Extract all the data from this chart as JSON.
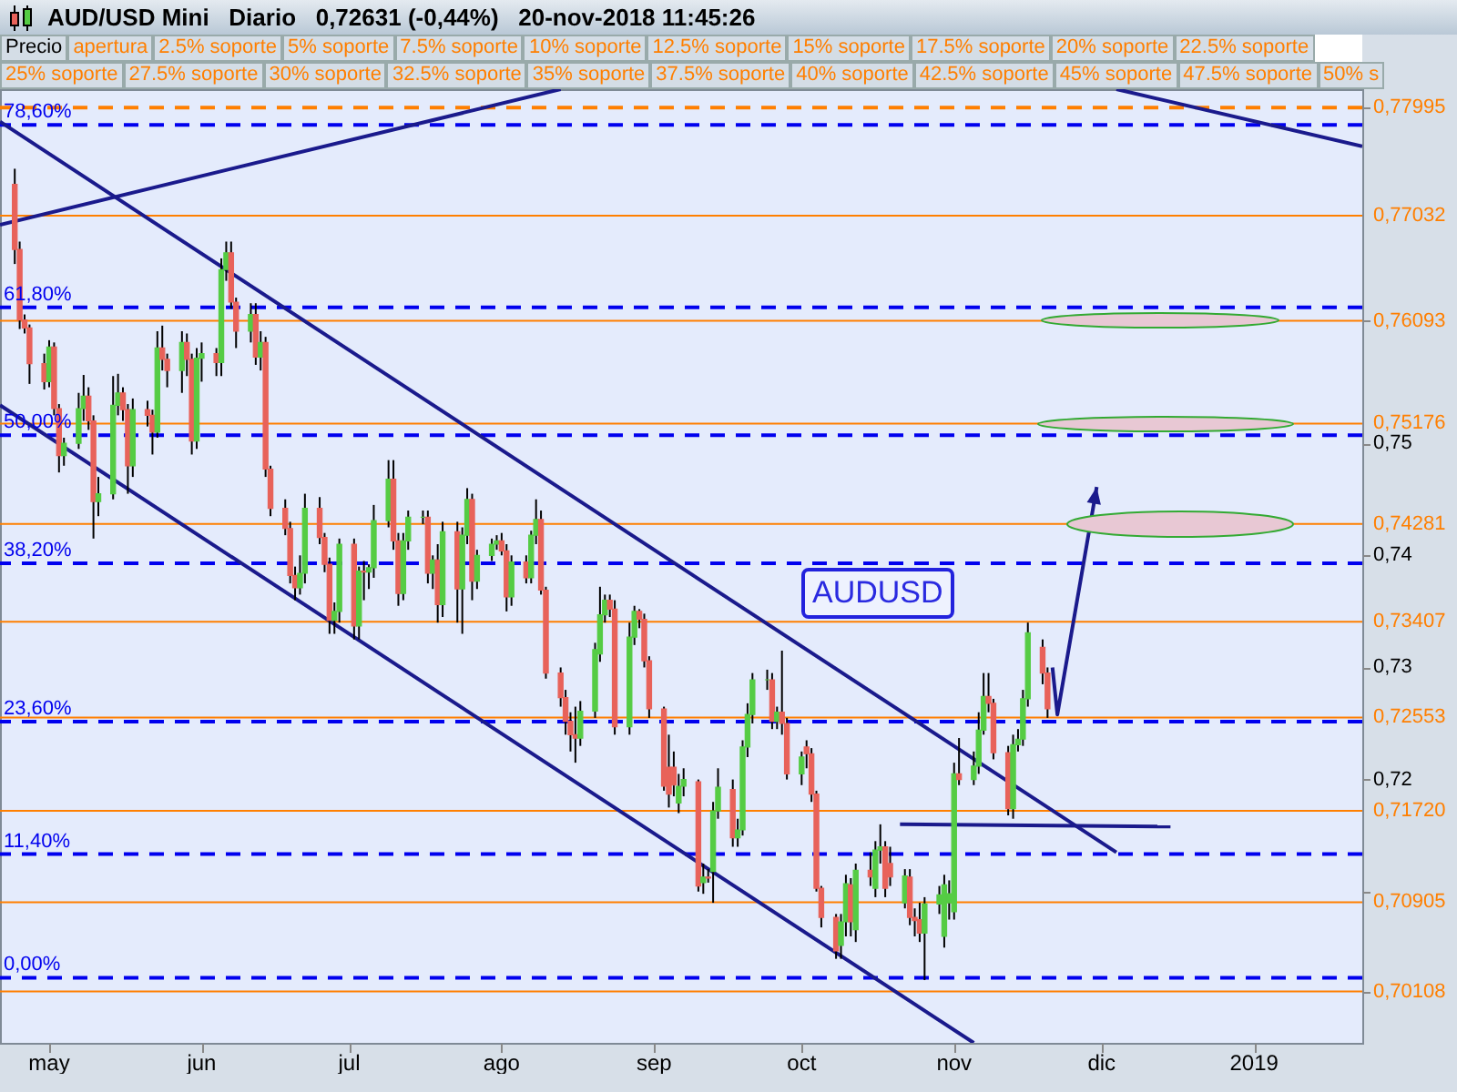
{
  "chart_data": {
    "type": "candlestick",
    "title": "AUD/USD Mini   Diario   0,72631 (-0,44%)   20-nov-2018 11:45:26",
    "annotations": [
      "AUDUSD",
      "Precio",
      "apertura",
      "2.5% soporte",
      "5% soporte",
      "7.5% soporte",
      "10% soporte",
      "12.5% soporte",
      "15% soporte",
      "17.5% soporte",
      "20% soporte",
      "22.5% soporte",
      "25% soporte",
      "27.5% soporte",
      "30% soporte",
      "32.5% soporte",
      "35% soporte",
      "37.5% soporte",
      "40% soporte",
      "42.5% soporte",
      "45% soporte",
      "47.5% soporte",
      "50% s"
    ],
    "x": [
      "2018-04-24",
      "2018-04-25",
      "2018-04-26",
      "2018-04-27",
      "2018-04-30",
      "2018-05-01",
      "2018-05-02",
      "2018-05-03",
      "2018-05-04",
      "2018-05-07",
      "2018-05-08",
      "2018-05-09",
      "2018-05-10",
      "2018-05-11",
      "2018-05-14",
      "2018-05-15",
      "2018-05-16",
      "2018-05-17",
      "2018-05-18",
      "2018-05-21",
      "2018-05-22",
      "2018-05-23",
      "2018-05-24",
      "2018-05-25",
      "2018-05-28",
      "2018-05-29",
      "2018-05-30",
      "2018-05-31",
      "2018-06-01",
      "2018-06-04",
      "2018-06-05",
      "2018-06-06",
      "2018-06-07",
      "2018-06-08",
      "2018-06-11",
      "2018-06-12",
      "2018-06-13",
      "2018-06-14",
      "2018-06-15",
      "2018-06-18",
      "2018-06-19",
      "2018-06-20",
      "2018-06-21",
      "2018-06-22",
      "2018-06-25",
      "2018-06-26",
      "2018-06-27",
      "2018-06-28",
      "2018-06-29",
      "2018-07-02",
      "2018-07-03",
      "2018-07-04",
      "2018-07-05",
      "2018-07-06",
      "2018-07-09",
      "2018-07-10",
      "2018-07-11",
      "2018-07-12",
      "2018-07-13",
      "2018-07-16",
      "2018-07-17",
      "2018-07-18",
      "2018-07-19",
      "2018-07-20",
      "2018-07-23",
      "2018-07-24",
      "2018-07-25",
      "2018-07-26",
      "2018-07-27",
      "2018-07-30",
      "2018-07-31",
      "2018-08-01",
      "2018-08-02",
      "2018-08-03",
      "2018-08-06",
      "2018-08-07",
      "2018-08-08",
      "2018-08-09",
      "2018-08-10",
      "2018-08-13",
      "2018-08-14",
      "2018-08-15",
      "2018-08-16",
      "2018-08-17",
      "2018-08-20",
      "2018-08-21",
      "2018-08-22",
      "2018-08-23",
      "2018-08-24",
      "2018-08-27",
      "2018-08-28",
      "2018-08-29",
      "2018-08-30",
      "2018-08-31",
      "2018-09-03",
      "2018-09-04",
      "2018-09-05",
      "2018-09-06",
      "2018-09-07",
      "2018-09-10",
      "2018-09-11",
      "2018-09-12",
      "2018-09-13",
      "2018-09-14",
      "2018-09-17",
      "2018-09-18",
      "2018-09-19",
      "2018-09-20",
      "2018-09-21",
      "2018-09-24",
      "2018-09-25",
      "2018-09-26",
      "2018-09-27",
      "2018-09-28",
      "2018-10-01",
      "2018-10-02",
      "2018-10-03",
      "2018-10-04",
      "2018-10-05",
      "2018-10-08",
      "2018-10-09",
      "2018-10-10",
      "2018-10-11",
      "2018-10-12",
      "2018-10-15",
      "2018-10-16",
      "2018-10-17",
      "2018-10-18",
      "2018-10-19",
      "2018-10-22",
      "2018-10-23",
      "2018-10-24",
      "2018-10-25",
      "2018-10-26",
      "2018-10-29",
      "2018-10-30",
      "2018-10-31",
      "2018-11-01",
      "2018-11-02",
      "2018-11-05",
      "2018-11-06",
      "2018-11-07",
      "2018-11-08",
      "2018-11-09",
      "2018-11-12",
      "2018-11-13",
      "2018-11-14",
      "2018-11-15",
      "2018-11-16",
      "2018-11-19",
      "2018-11-20"
    ],
    "ohlc": [
      [
        0.7731,
        0.7745,
        0.766,
        0.7673
      ],
      [
        0.7673,
        0.768,
        0.7602,
        0.761
      ],
      [
        0.761,
        0.7615,
        0.7598,
        0.7603
      ],
      [
        0.7603,
        0.7606,
        0.7553,
        0.7571
      ],
      [
        0.7571,
        0.758,
        0.7548,
        0.7555
      ],
      [
        0.7555,
        0.7592,
        0.755,
        0.7586
      ],
      [
        0.7586,
        0.759,
        0.7525,
        0.7531
      ],
      [
        0.7531,
        0.7535,
        0.7474,
        0.7489
      ],
      [
        0.7489,
        0.7505,
        0.748,
        0.75
      ],
      [
        0.75,
        0.7545,
        0.7495,
        0.7531
      ],
      [
        0.7531,
        0.7561,
        0.752,
        0.7542
      ],
      [
        0.7542,
        0.755,
        0.7512,
        0.752
      ],
      [
        0.752,
        0.7525,
        0.7415,
        0.7448
      ],
      [
        0.7448,
        0.747,
        0.7435,
        0.7455
      ],
      [
        0.7455,
        0.756,
        0.745,
        0.7534
      ],
      [
        0.7534,
        0.7562,
        0.7525,
        0.7545
      ],
      [
        0.7545,
        0.755,
        0.752,
        0.753
      ],
      [
        0.753,
        0.7535,
        0.7455,
        0.748
      ],
      [
        0.748,
        0.754,
        0.747,
        0.753
      ],
      [
        0.753,
        0.7538,
        0.7515,
        0.7525
      ],
      [
        0.7525,
        0.753,
        0.749,
        0.751
      ],
      [
        0.751,
        0.76,
        0.7505,
        0.7585
      ],
      [
        0.7585,
        0.7605,
        0.7565,
        0.7575
      ],
      [
        0.7575,
        0.758,
        0.755,
        0.7565
      ],
      [
        0.7565,
        0.76,
        0.7545,
        0.759
      ],
      [
        0.759,
        0.7598,
        0.756,
        0.7575
      ],
      [
        0.7575,
        0.758,
        0.749,
        0.7502
      ],
      [
        0.7502,
        0.7585,
        0.7495,
        0.7576
      ],
      [
        0.7576,
        0.759,
        0.7555,
        0.758
      ],
      [
        0.758,
        0.7585,
        0.756,
        0.7572
      ],
      [
        0.7572,
        0.7665,
        0.756,
        0.7655
      ],
      [
        0.7655,
        0.768,
        0.7645,
        0.767
      ],
      [
        0.767,
        0.768,
        0.762,
        0.7626
      ],
      [
        0.7626,
        0.763,
        0.7585,
        0.76
      ],
      [
        0.76,
        0.7625,
        0.759,
        0.7615
      ],
      [
        0.7615,
        0.7625,
        0.757,
        0.7577
      ],
      [
        0.7577,
        0.76,
        0.7565,
        0.759
      ],
      [
        0.759,
        0.7595,
        0.747,
        0.7477
      ],
      [
        0.7477,
        0.748,
        0.7435,
        0.7442
      ],
      [
        0.7442,
        0.745,
        0.7418,
        0.7424
      ],
      [
        0.7424,
        0.743,
        0.7375,
        0.7382
      ],
      [
        0.7382,
        0.739,
        0.736,
        0.7371
      ],
      [
        0.7371,
        0.74,
        0.7365,
        0.7384
      ],
      [
        0.7384,
        0.7455,
        0.7375,
        0.7442
      ],
      [
        0.7442,
        0.7452,
        0.741,
        0.7416
      ],
      [
        0.7416,
        0.742,
        0.7385,
        0.7392
      ],
      [
        0.7392,
        0.7398,
        0.733,
        0.7342
      ],
      [
        0.7342,
        0.7358,
        0.733,
        0.735
      ],
      [
        0.735,
        0.7415,
        0.734,
        0.741
      ],
      [
        0.741,
        0.7415,
        0.7325,
        0.7337
      ],
      [
        0.7337,
        0.739,
        0.7325,
        0.7386
      ],
      [
        0.7386,
        0.7395,
        0.736,
        0.7385
      ],
      [
        0.7385,
        0.7392,
        0.737,
        0.7389
      ],
      [
        0.7389,
        0.7445,
        0.738,
        0.7431
      ],
      [
        0.7431,
        0.7485,
        0.7425,
        0.7468
      ],
      [
        0.7468,
        0.7485,
        0.7405,
        0.7413
      ],
      [
        0.7413,
        0.742,
        0.7355,
        0.7366
      ],
      [
        0.7366,
        0.742,
        0.736,
        0.7413
      ],
      [
        0.7413,
        0.744,
        0.7405,
        0.7434
      ],
      [
        0.7434,
        0.744,
        0.7428,
        0.7434
      ],
      [
        0.7434,
        0.744,
        0.7375,
        0.7384
      ],
      [
        0.7384,
        0.74,
        0.737,
        0.7396
      ],
      [
        0.7396,
        0.741,
        0.734,
        0.7356
      ],
      [
        0.7356,
        0.743,
        0.7345,
        0.7421
      ],
      [
        0.7421,
        0.743,
        0.734,
        0.737
      ],
      [
        0.737,
        0.7425,
        0.733,
        0.7418
      ],
      [
        0.7418,
        0.746,
        0.741,
        0.745
      ],
      [
        0.745,
        0.7455,
        0.736,
        0.7377
      ],
      [
        0.7377,
        0.7405,
        0.737,
        0.74
      ],
      [
        0.74,
        0.7415,
        0.7395,
        0.741
      ],
      [
        0.741,
        0.7418,
        0.7405,
        0.7413
      ],
      [
        0.7413,
        0.742,
        0.74,
        0.7404
      ],
      [
        0.7404,
        0.741,
        0.735,
        0.7363
      ],
      [
        0.7363,
        0.74,
        0.7355,
        0.7394
      ],
      [
        0.7394,
        0.74,
        0.7375,
        0.738
      ],
      [
        0.738,
        0.7422,
        0.7375,
        0.7418
      ],
      [
        0.7418,
        0.745,
        0.741,
        0.7432
      ],
      [
        0.7432,
        0.744,
        0.7365,
        0.7369
      ],
      [
        0.7369,
        0.7372,
        0.729,
        0.7295
      ],
      [
        0.7295,
        0.73,
        0.7265,
        0.7273
      ],
      [
        0.7273,
        0.728,
        0.724,
        0.7252
      ],
      [
        0.7252,
        0.726,
        0.7225,
        0.724
      ],
      [
        0.724,
        0.7265,
        0.7215,
        0.7237
      ],
      [
        0.7237,
        0.727,
        0.723,
        0.7261
      ],
      [
        0.7261,
        0.7322,
        0.7255,
        0.7316
      ],
      [
        0.7312,
        0.7372,
        0.7305,
        0.7347
      ],
      [
        0.7347,
        0.7365,
        0.734,
        0.736
      ],
      [
        0.736,
        0.7365,
        0.7345,
        0.7352
      ],
      [
        0.7352,
        0.736,
        0.724,
        0.7247
      ],
      [
        0.7247,
        0.734,
        0.724,
        0.7327
      ],
      [
        0.7327,
        0.7355,
        0.732,
        0.735
      ],
      [
        0.735,
        0.7352,
        0.7335,
        0.7343
      ],
      [
        0.7343,
        0.7348,
        0.73,
        0.7306
      ],
      [
        0.7306,
        0.731,
        0.7255,
        0.7263
      ],
      [
        0.7263,
        0.7265,
        0.719,
        0.7194
      ],
      [
        0.7211,
        0.724,
        0.7175,
        0.7187
      ],
      [
        0.7211,
        0.7225,
        0.7185,
        0.7195
      ],
      [
        0.7179,
        0.7205,
        0.717,
        0.7194
      ],
      [
        0.7194,
        0.721,
        0.7185,
        0.72
      ],
      [
        0.7198,
        0.72,
        0.71,
        0.7105
      ],
      [
        0.7108,
        0.7125,
        0.7098,
        0.7113
      ],
      [
        0.7113,
        0.712,
        0.7108,
        0.7112
      ],
      [
        0.7118,
        0.718,
        0.709,
        0.7172
      ],
      [
        0.7172,
        0.721,
        0.7165,
        0.7193
      ],
      [
        0.7191,
        0.72,
        0.714,
        0.7148
      ],
      [
        0.7148,
        0.7165,
        0.714,
        0.7155
      ],
      [
        0.7155,
        0.7235,
        0.715,
        0.7229
      ],
      [
        0.7229,
        0.7268,
        0.722,
        0.7258
      ],
      [
        0.7258,
        0.7295,
        0.725,
        0.7289
      ],
      [
        0.7289,
        0.7298,
        0.728,
        0.7289
      ],
      [
        0.7289,
        0.7295,
        0.7245,
        0.7252
      ],
      [
        0.7252,
        0.7265,
        0.7245,
        0.726
      ],
      [
        0.726,
        0.7315,
        0.724,
        0.725
      ],
      [
        0.725,
        0.7255,
        0.72,
        0.7205
      ],
      [
        0.7205,
        0.7225,
        0.7195,
        0.722
      ],
      [
        0.7229,
        0.7235,
        0.721,
        0.7223
      ],
      [
        0.7223,
        0.7228,
        0.718,
        0.7187
      ],
      [
        0.7187,
        0.719,
        0.71,
        0.7103
      ],
      [
        0.7103,
        0.7105,
        0.7068,
        0.7077
      ],
      [
        0.7077,
        0.708,
        0.704,
        0.7047
      ],
      [
        0.7052,
        0.708,
        0.704,
        0.7073
      ],
      [
        0.7073,
        0.7115,
        0.706,
        0.7107
      ],
      [
        0.7106,
        0.7112,
        0.706,
        0.7073
      ],
      [
        0.7066,
        0.7125,
        0.7055,
        0.7119
      ],
      [
        0.7119,
        0.7135,
        0.7105,
        0.7113
      ],
      [
        0.7103,
        0.7145,
        0.7095,
        0.7137
      ],
      [
        0.7137,
        0.716,
        0.7125,
        0.714
      ],
      [
        0.714,
        0.7145,
        0.7095,
        0.7103
      ],
      [
        0.7125,
        0.714,
        0.7105,
        0.7113
      ],
      [
        0.709,
        0.712,
        0.7085,
        0.7114
      ],
      [
        0.7113,
        0.712,
        0.707,
        0.7077
      ],
      [
        0.7077,
        0.7085,
        0.706,
        0.7074
      ],
      [
        0.7075,
        0.709,
        0.7055,
        0.7063
      ],
      [
        0.7063,
        0.7095,
        0.7021,
        0.7089
      ],
      [
        0.7089,
        0.7105,
        0.708,
        0.7097
      ],
      [
        0.706,
        0.7115,
        0.705,
        0.7106
      ],
      [
        0.709,
        0.711,
        0.7075,
        0.7098
      ],
      [
        0.7082,
        0.7215,
        0.7075,
        0.7205
      ],
      [
        0.7205,
        0.7237,
        0.7195,
        0.72
      ],
      [
        0.72,
        0.7225,
        0.7195,
        0.7212
      ],
      [
        0.7212,
        0.726,
        0.7205,
        0.7244
      ],
      [
        0.7244,
        0.7295,
        0.724,
        0.7274
      ],
      [
        0.7274,
        0.7295,
        0.726,
        0.7268
      ],
      [
        0.7268,
        0.7272,
        0.7218,
        0.7224
      ],
      [
        0.7224,
        0.723,
        0.7168,
        0.7174
      ],
      [
        0.7174,
        0.724,
        0.7165,
        0.7231
      ],
      [
        0.7231,
        0.7245,
        0.7225,
        0.7236
      ],
      [
        0.7236,
        0.728,
        0.723,
        0.7272
      ],
      [
        0.7272,
        0.734,
        0.7265,
        0.7331
      ],
      [
        0.7318,
        0.7325,
        0.7285,
        0.7295
      ],
      [
        0.7295,
        0.73,
        0.7255,
        0.7263
      ]
    ],
    "colors": [
      "#e8625a",
      "#e8625a",
      "#e8625a",
      "#e8625a",
      "#e8625a",
      "#55cc44",
      "#e8625a",
      "#e8625a",
      "#55cc44",
      "#55cc44",
      "#55cc44",
      "#e8625a",
      "#e8625a",
      "#55cc44",
      "#55cc44",
      "#55cc44",
      "#e8625a",
      "#e8625a",
      "#55cc44",
      "#e8625a",
      "#e8625a",
      "#55cc44",
      "#e8625a",
      "#e8625a",
      "#55cc44",
      "#e8625a",
      "#e8625a",
      "#55cc44",
      "#55cc44",
      "#e8625a",
      "#55cc44",
      "#55cc44",
      "#e8625a",
      "#e8625a",
      "#55cc44",
      "#e8625a",
      "#55cc44",
      "#e8625a",
      "#e8625a",
      "#e8625a",
      "#e8625a",
      "#e8625a",
      "#55cc44",
      "#55cc44",
      "#e8625a",
      "#e8625a",
      "#e8625a",
      "#55cc44",
      "#55cc44",
      "#e8625a",
      "#55cc44",
      "#e8625a",
      "#55cc44",
      "#55cc44",
      "#55cc44",
      "#e8625a",
      "#e8625a",
      "#55cc44",
      "#55cc44",
      "#55cc44",
      "#e8625a",
      "#55cc44",
      "#e8625a",
      "#55cc44",
      "#e8625a",
      "#55cc44",
      "#55cc44",
      "#e8625a",
      "#55cc44",
      "#55cc44",
      "#55cc44",
      "#e8625a",
      "#e8625a",
      "#55cc44",
      "#e8625a",
      "#55cc44",
      "#55cc44",
      "#e8625a",
      "#e8625a",
      "#e8625a",
      "#e8625a",
      "#e8625a",
      "#e8625a",
      "#55cc44",
      "#55cc44",
      "#55cc44",
      "#55cc44",
      "#e8625a",
      "#e8625a",
      "#55cc44",
      "#55cc44",
      "#e8625a",
      "#e8625a",
      "#e8625a",
      "#e8625a",
      "#e8625a",
      "#e8625a",
      "#55cc44",
      "#55cc44",
      "#e8625a",
      "#55cc44",
      "#e8625a",
      "#55cc44",
      "#55cc44",
      "#e8625a",
      "#55cc44",
      "#55cc44",
      "#55cc44",
      "#55cc44",
      "#55cc44",
      "#e8625a",
      "#55cc44",
      "#e8625a",
      "#e8625a",
      "#55cc44",
      "#e8625a",
      "#e8625a",
      "#e8625a",
      "#e8625a",
      "#e8625a",
      "#55cc44",
      "#55cc44",
      "#e8625a",
      "#55cc44",
      "#e8625a",
      "#55cc44",
      "#55cc44",
      "#e8625a",
      "#e8625a",
      "#55cc44",
      "#e8625a",
      "#e8625a",
      "#e8625a",
      "#55cc44",
      "#55cc44",
      "#55cc44",
      "#55cc44",
      "#55cc44",
      "#e8625a",
      "#55cc44",
      "#55cc44",
      "#55cc44",
      "#e8625a",
      "#e8625a",
      "#e8625a",
      "#55cc44",
      "#55cc44",
      "#55cc44",
      "#55cc44",
      "#e8625a",
      "#e8625a"
    ],
    "series": [
      {
        "type": "line",
        "color": "#1a1a8c",
        "x": [
          "2018-04-21",
          "2018-12-04"
        ],
        "values": [
          0.7787,
          0.7135
        ]
      },
      {
        "type": "line",
        "color": "#1a1a8c",
        "x": [
          "2018-04-21",
          "2018-11-05"
        ],
        "values": [
          0.7534,
          0.6965
        ]
      },
      {
        "type": "line",
        "color": "#1a1a8c",
        "x": [
          "2018-04-21",
          "2018-08-13"
        ],
        "values": [
          0.7695,
          0.7816
        ]
      },
      {
        "type": "line",
        "color": "#1a1a8c",
        "x": [
          "2018-12-04",
          "2019-01-23"
        ],
        "values": [
          0.7816,
          0.7765
        ]
      },
      {
        "type": "line",
        "color": "#1a1a8c",
        "x": [
          "2018-10-21",
          "2018-12-15"
        ],
        "values": [
          0.716,
          0.7158
        ]
      }
    ],
    "xlim": [
      "2018-04-21",
      "2019-01-23"
    ],
    "xticks": [
      {
        "value": "2018-05-01",
        "label": "may"
      },
      {
        "value": "2018-06-01",
        "label": "jun"
      },
      {
        "value": "2018-07-01",
        "label": "jul"
      },
      {
        "value": "2018-08-01",
        "label": "ago"
      },
      {
        "value": "2018-09-01",
        "label": "sep"
      },
      {
        "value": "2018-10-01",
        "label": "oct"
      },
      {
        "value": "2018-11-01",
        "label": "nov"
      },
      {
        "value": "2018-12-01",
        "label": "dic"
      },
      {
        "value": "2019-01-01",
        "label": "2019"
      }
    ],
    "ylim": [
      0.6965,
      0.7816
    ],
    "y2lim": [
      -6,
      81.9
    ],
    "yticks": [
      {
        "value": 0.70108,
        "label": "0,70108"
      },
      {
        "value": 0.70905,
        "label": "0,70905"
      },
      {
        "value": 0.71,
        "label": null
      },
      {
        "value": 0.7172,
        "label": "0,71720"
      },
      {
        "value": 0.72,
        "label": "0,72"
      },
      {
        "value": 0.72553,
        "label": "0,72553"
      },
      {
        "value": 0.73,
        "label": "0,73"
      },
      {
        "value": 0.73407,
        "label": "0,73407"
      },
      {
        "value": 0.74,
        "label": "0,74"
      },
      {
        "value": 0.74281,
        "label": "0,74281"
      },
      {
        "value": 0.75,
        "label": "0,75"
      },
      {
        "value": 0.75176,
        "label": "0,75176"
      },
      {
        "value": 0.76093,
        "label": "0,76093"
      },
      {
        "value": 0.77032,
        "label": "0,77032"
      },
      {
        "value": 0.77995,
        "label": "0,77995"
      }
    ],
    "ref_lines": [
      {
        "axis": "y",
        "value": 0.77995,
        "color": "#ff7f00",
        "line_style": "dashed"
      },
      {
        "axis": "y",
        "value": 0.77032,
        "color": "#ff7f00",
        "line_style": "solid"
      },
      {
        "axis": "y",
        "value": 0.76093,
        "color": "#ff7f00",
        "line_style": "solid"
      },
      {
        "axis": "y",
        "value": 0.75176,
        "color": "#ff7f00",
        "line_style": "solid"
      },
      {
        "axis": "y",
        "value": 0.74281,
        "color": "#ff7f00",
        "line_style": "solid"
      },
      {
        "axis": "y",
        "value": 0.73407,
        "color": "#ff7f00",
        "line_style": "solid"
      },
      {
        "axis": "y",
        "value": 0.72553,
        "color": "#ff7f00",
        "line_style": "solid"
      },
      {
        "axis": "y",
        "value": 0.7172,
        "color": "#ff7f00",
        "line_style": "solid"
      },
      {
        "axis": "y",
        "value": 0.70905,
        "color": "#ff7f00",
        "line_style": "solid"
      },
      {
        "axis": "y",
        "value": 0.70108,
        "color": "#ff7f00",
        "line_style": "solid"
      },
      {
        "axis": "y2",
        "value": 78.6,
        "label": "78,60%",
        "color": "#0000ee",
        "line_style": "dashed"
      },
      {
        "axis": "y2",
        "value": 61.8,
        "label": "61,80%",
        "color": "#0000ee",
        "line_style": "dashed"
      },
      {
        "axis": "y2",
        "value": 50,
        "label": "50,00%",
        "color": "#0000ee",
        "line_style": "dashed"
      },
      {
        "axis": "y2",
        "value": 38.2,
        "label": "38,20%",
        "color": "#0000ee",
        "line_style": "dashed"
      },
      {
        "axis": "y2",
        "value": 23.6,
        "label": "23,60%",
        "color": "#0000ee",
        "line_style": "dashed"
      },
      {
        "axis": "y2",
        "value": 11.4,
        "label": "11,40%",
        "color": "#0000ee",
        "line_style": "dashed"
      },
      {
        "axis": "y2",
        "value": 0,
        "label": "0,00%",
        "color": "#0000ee",
        "line_style": "dashed"
      }
    ]
  }
}
